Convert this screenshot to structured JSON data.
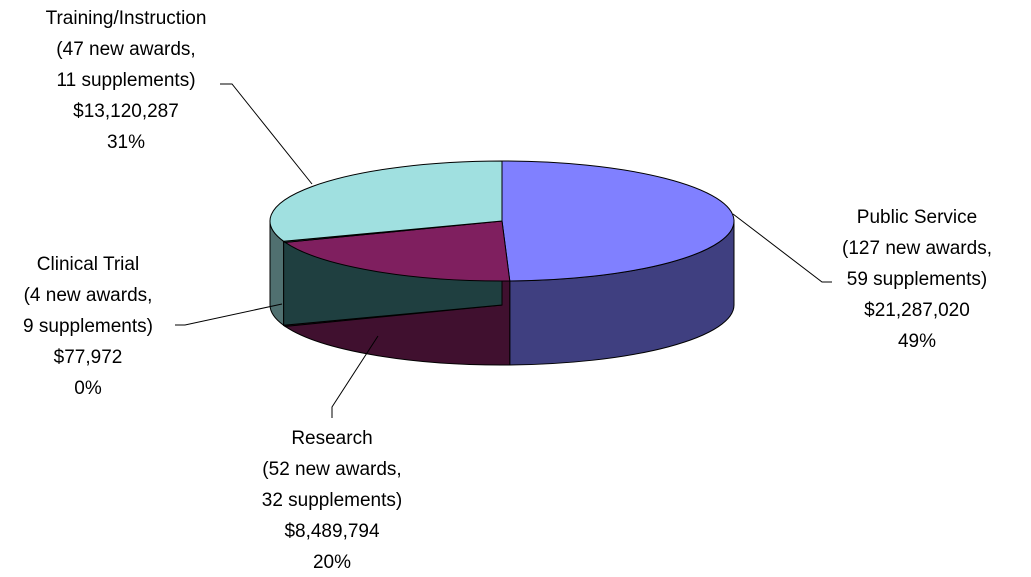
{
  "chart_data": {
    "type": "pie",
    "style": "3d-oval",
    "legend": "none",
    "slices": [
      {
        "key": "public",
        "label": "Public Service",
        "detail_1": "(127 new awards,",
        "detail_2": "59 supplements)",
        "amount": 21287020,
        "amount_label": "$21,287,020",
        "percent": 49,
        "percent_label": "49%",
        "top_color": "#8080ff",
        "side_color": "#3f3f80"
      },
      {
        "key": "research",
        "label": "Research",
        "detail_1": "(52 new awards,",
        "detail_2": "32 supplements)",
        "amount": 8489794,
        "amount_label": "$8,489,794",
        "percent": 20,
        "percent_label": "20%",
        "top_color": "#7f1f5f",
        "side_color": "#40102f"
      },
      {
        "key": "clinical",
        "label": "Clinical Trial",
        "detail_1": "(4 new awards,",
        "detail_2": "9 supplements)",
        "amount": 77972,
        "amount_label": "$77,972",
        "percent": 0,
        "percent_label": "0%",
        "top_color": "#3f6f70",
        "side_color": "#1f3f40"
      },
      {
        "key": "training",
        "label": "Training/Instruction",
        "detail_1": "(47 new awards,",
        "detail_2": "11 supplements)",
        "amount": 13120287,
        "amount_label": "$13,120,287",
        "percent": 31,
        "percent_label": "31%",
        "top_color": "#a0e0e0",
        "side_color": "#507070"
      }
    ]
  }
}
